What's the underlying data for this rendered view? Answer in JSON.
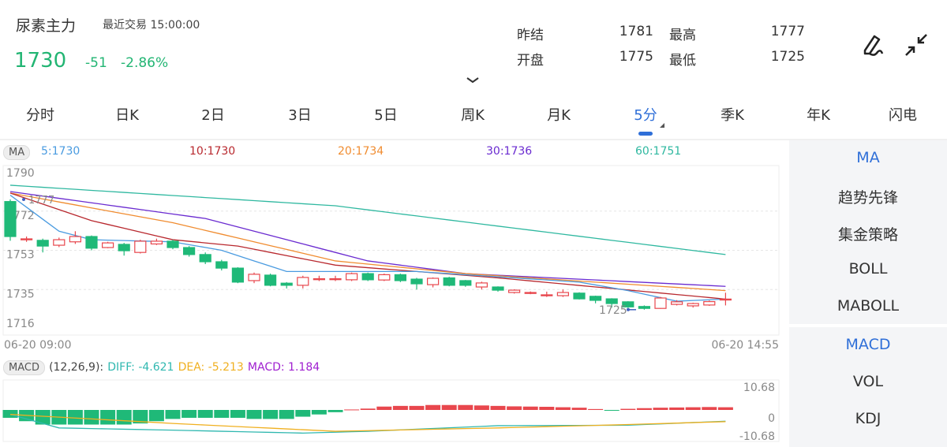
{
  "header": {
    "name": "尿素主力",
    "last_trade_label": "最近交易",
    "last_trade_time": "15:00:00",
    "price": "1730",
    "change": "-51",
    "change_pct": "-2.86%",
    "quote": [
      {
        "label": "昨结",
        "value": "1781"
      },
      {
        "label": "最高",
        "value": "1777"
      },
      {
        "label": "开盘",
        "value": "1775"
      },
      {
        "label": "最低",
        "value": "1725"
      }
    ],
    "icons": [
      "draw-icon",
      "collapse-icon",
      "chevron-down-icon"
    ]
  },
  "tabs": [
    {
      "label": "分时"
    },
    {
      "label": "日K"
    },
    {
      "label": "2日"
    },
    {
      "label": "3日"
    },
    {
      "label": "5日"
    },
    {
      "label": "周K"
    },
    {
      "label": "月K"
    },
    {
      "label": "5分",
      "active": true
    },
    {
      "label": "季K"
    },
    {
      "label": "年K"
    },
    {
      "label": "闪电"
    }
  ],
  "side": {
    "main_indicators": [
      "MA",
      "趋势先锋",
      "集金策略",
      "BOLL",
      "MABOLL"
    ],
    "sub_indicators": [
      "MACD",
      "VOL",
      "KDJ"
    ],
    "selected_main": "MA",
    "selected_sub": "MACD"
  },
  "colors": {
    "up": "#e8474d",
    "down": "#1fb978",
    "accent": "#2f6fd8",
    "ma5": "#4a9be0",
    "ma10": "#b8282e",
    "ma20": "#f08c30",
    "ma30": "#6a2bd0",
    "ma60": "#2fb8a0",
    "diff": "#30b8b0",
    "dea": "#f0b020",
    "macd": "#a020d0"
  },
  "chart_data": [
    {
      "type": "candlestick",
      "ma_pill": "MA",
      "legend": [
        {
          "name": "5:1730",
          "key": "ma5"
        },
        {
          "name": "10:1730",
          "key": "ma10"
        },
        {
          "name": "20:1734",
          "key": "ma20"
        },
        {
          "name": "30:1736",
          "key": "ma30"
        },
        {
          "name": "60:1751",
          "key": "ma60"
        }
      ],
      "y_ticks": [
        "1790",
        "1772",
        "1753",
        "1735",
        "1716"
      ],
      "ylim": [
        1716,
        1790
      ],
      "x_start": "06-20 09:00",
      "x_end": "06-20 14:55",
      "high_label": "1777",
      "low_label": "1725",
      "grid": true,
      "candles": [
        [
          1776,
          1759.5,
          1777,
          1757.5
        ],
        [
          1758.4,
          1758.4,
          1759.5,
          1757
        ],
        [
          1757.7,
          1755,
          1758.5,
          1752
        ],
        [
          1755.4,
          1758,
          1759,
          1754.5
        ],
        [
          1757,
          1759.5,
          1762,
          1756
        ],
        [
          1759.5,
          1754,
          1760,
          1753
        ],
        [
          1754.3,
          1756.5,
          1757,
          1754
        ],
        [
          1755.8,
          1752.8,
          1756.5,
          1750.5
        ],
        [
          1752,
          1757.3,
          1758,
          1751.5
        ],
        [
          1756,
          1757.3,
          1758.5,
          1755.5
        ],
        [
          1757.3,
          1754.3,
          1758,
          1753.5
        ],
        [
          1754.3,
          1751,
          1755,
          1750
        ],
        [
          1751,
          1747.6,
          1752,
          1746.5
        ],
        [
          1747.6,
          1744.6,
          1748.5,
          1743.5
        ],
        [
          1744.6,
          1738,
          1745,
          1737.5
        ],
        [
          1738.7,
          1741.7,
          1742.5,
          1737.5
        ],
        [
          1741.3,
          1736.5,
          1742,
          1736
        ],
        [
          1737.5,
          1736.5,
          1738,
          1735
        ],
        [
          1736.5,
          1740.2,
          1741,
          1735
        ],
        [
          1739.4,
          1739.6,
          1741,
          1738.5
        ],
        [
          1739.4,
          1739.6,
          1741,
          1738.5
        ],
        [
          1739.1,
          1742,
          1742.5,
          1738.5
        ],
        [
          1742,
          1739.1,
          1742.5,
          1738.5
        ],
        [
          1739,
          1741.5,
          1742,
          1738.5
        ],
        [
          1741.5,
          1738.7,
          1742,
          1738
        ],
        [
          1739.4,
          1737.2,
          1740,
          1734.5
        ],
        [
          1736.8,
          1739.8,
          1740.2,
          1735.5
        ],
        [
          1740,
          1736.5,
          1740.5,
          1736
        ],
        [
          1738.7,
          1736.5,
          1739,
          1735.8
        ],
        [
          1735.7,
          1737.6,
          1738.2,
          1734.5
        ],
        [
          1735.7,
          1734.2,
          1736,
          1733.5
        ],
        [
          1733.1,
          1734.2,
          1734.6,
          1732.6
        ],
        [
          1732.8,
          1733.1,
          1733.6,
          1732.3
        ],
        [
          1731.6,
          1732,
          1733.5,
          1731
        ],
        [
          1731.6,
          1733.1,
          1734.5,
          1731
        ],
        [
          1732.8,
          1730.1,
          1733.2,
          1729.8
        ],
        [
          1731.3,
          1729.4,
          1731.6,
          1728
        ],
        [
          1730.1,
          1727.9,
          1730.4,
          1726
        ],
        [
          1728.7,
          1726.3,
          1729,
          1725.8
        ],
        [
          1726.5,
          1725.6,
          1727,
          1725
        ],
        [
          1725.6,
          1730.5,
          1731,
          1725.4
        ],
        [
          1727.5,
          1728.7,
          1729.5,
          1727
        ],
        [
          1726.8,
          1727.9,
          1728.3,
          1726
        ],
        [
          1727.2,
          1728.8,
          1729.3,
          1726.8
        ],
        [
          1729.8,
          1730,
          1733,
          1727
        ]
      ],
      "ma": {
        "ma60": [
          [
            0,
            1783.7
          ],
          [
            20,
            1774
          ],
          [
            44,
            1751
          ]
        ],
        "ma30": [
          [
            0,
            1780.7
          ],
          [
            12,
            1768
          ],
          [
            22,
            1748
          ],
          [
            28,
            1742
          ],
          [
            36,
            1739
          ],
          [
            44,
            1736
          ]
        ],
        "ma20": [
          [
            0,
            1780
          ],
          [
            10,
            1766
          ],
          [
            20,
            1748
          ],
          [
            28,
            1742
          ],
          [
            44,
            1734
          ]
        ],
        "ma10": [
          [
            0,
            1780
          ],
          [
            5,
            1767
          ],
          [
            10,
            1758
          ],
          [
            14,
            1755
          ],
          [
            20,
            1746
          ],
          [
            30,
            1740
          ],
          [
            44,
            1730
          ]
        ],
        "ma5": [
          [
            0,
            1779
          ],
          [
            3,
            1762
          ],
          [
            5,
            1758
          ],
          [
            10,
            1757
          ],
          [
            13,
            1753
          ],
          [
            17,
            1743
          ],
          [
            25,
            1743
          ],
          [
            35,
            1738
          ],
          [
            38,
            1734
          ],
          [
            41,
            1729
          ],
          [
            44,
            1730
          ]
        ]
      }
    },
    {
      "type": "macd",
      "pill": "MACD",
      "params": "(12,26,9):",
      "diff_label": "DIFF: -4.621",
      "dea_label": "DEA: -5.213",
      "macd_label": "MACD: 1.184",
      "y_ticks": [
        "10.68",
        "0",
        "-10.68"
      ],
      "ylim": [
        -10.68,
        10.68
      ],
      "bars": [
        -3.5,
        -5,
        -6.5,
        -6.5,
        -6.5,
        -6.5,
        -6.5,
        -6.5,
        -6,
        -5,
        -4,
        -3.5,
        -3.5,
        -3.5,
        -3.5,
        -4,
        -4,
        -4,
        -3,
        -2,
        -1,
        0.2,
        0.6,
        1.5,
        1.8,
        1.8,
        2.2,
        2.2,
        2.2,
        2,
        1.8,
        1.6,
        1.5,
        1.4,
        1.2,
        1,
        0.4,
        -0.3,
        0.5,
        0.8,
        1,
        1.1,
        1.2,
        1.3,
        1.2
      ],
      "diff": [
        [
          0,
          -2
        ],
        [
          3,
          -8
        ],
        [
          10,
          -9
        ],
        [
          18,
          -10.3
        ],
        [
          22,
          -9.5
        ],
        [
          30,
          -7
        ],
        [
          38,
          -6.8
        ],
        [
          44,
          -5
        ]
      ],
      "dea": [
        [
          0,
          -2
        ],
        [
          10,
          -6
        ],
        [
          20,
          -9.5
        ],
        [
          30,
          -8
        ],
        [
          38,
          -6.5
        ],
        [
          44,
          -5.2
        ]
      ]
    }
  ]
}
